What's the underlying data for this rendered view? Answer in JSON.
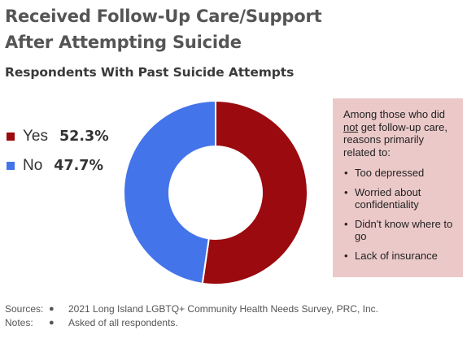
{
  "title_line1": "Received Follow-Up Care/Support",
  "title_line2": "After Attempting Suicide",
  "subtitle": "Respondents With Past Suicide Attempts",
  "colors": {
    "yes": "#9b0a0e",
    "no": "#4474ea"
  },
  "chart_data": {
    "type": "pie",
    "donut": true,
    "categories": [
      "Yes",
      "No"
    ],
    "values": [
      52.3,
      47.7
    ],
    "value_labels": [
      "52.3%",
      "47.7%"
    ],
    "legend_position": "left"
  },
  "note_box": {
    "intro_pre": "Among those who did",
    "intro_underlined": "not",
    "intro_post": "get follow-up care, reasons primarily related to:",
    "items": [
      "Too depressed",
      "Worried about confidentiality",
      "Didn't know where to go",
      "Lack of insurance"
    ]
  },
  "footer": {
    "sources_label": "Sources:",
    "sources_bullet": "●",
    "sources_text": "2021 Long Island LGBTQ+ Community Health Needs Survey, PRC, Inc.",
    "notes_label": "Notes:",
    "notes_bullet": "●",
    "notes_text": "Asked of all respondents."
  }
}
